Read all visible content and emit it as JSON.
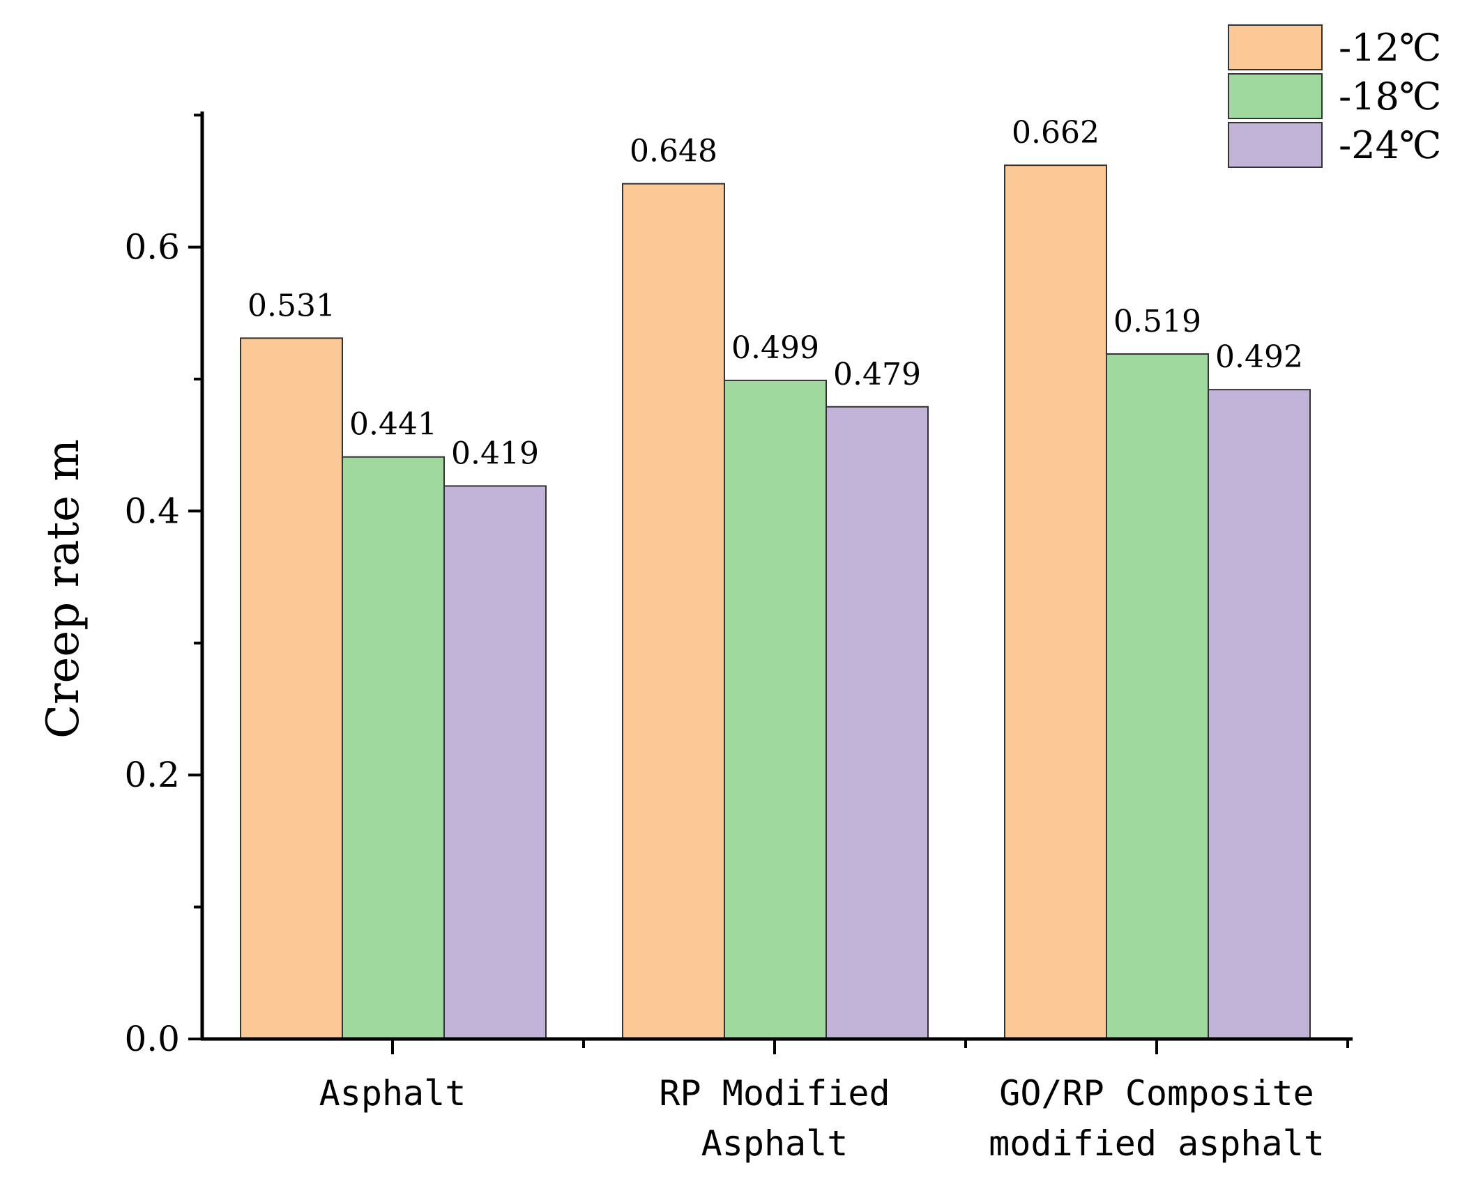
{
  "chart_data": {
    "type": "bar",
    "title": "",
    "xlabel": "",
    "ylabel": "Creep rate m",
    "ylim": [
      0,
      0.7
    ],
    "yticks": [
      "0.0",
      "0.2",
      "0.4",
      "0.6"
    ],
    "ytick_values": [
      0,
      0.2,
      0.4,
      0.6
    ],
    "minor_tick_step": 0.1,
    "categories": [
      [
        "Asphalt"
      ],
      [
        "RP Modified",
        "Asphalt"
      ],
      [
        "GO/RP Composite",
        "modified asphalt"
      ]
    ],
    "series": [
      {
        "name": "-12℃",
        "color": "#FCC895",
        "values": [
          0.531,
          0.648,
          0.662
        ],
        "labels": [
          "0.531",
          "0.648",
          "0.662"
        ]
      },
      {
        "name": "-18℃",
        "color": "#A0D99D",
        "values": [
          0.441,
          0.499,
          0.519
        ],
        "labels": [
          "0.441",
          "0.499",
          "0.519"
        ]
      },
      {
        "name": "-24℃",
        "color": "#C2B3D8",
        "values": [
          0.419,
          0.479,
          0.492
        ],
        "labels": [
          "0.419",
          "0.479",
          "0.492"
        ]
      }
    ],
    "legend_position": "top-right",
    "grid": false
  }
}
